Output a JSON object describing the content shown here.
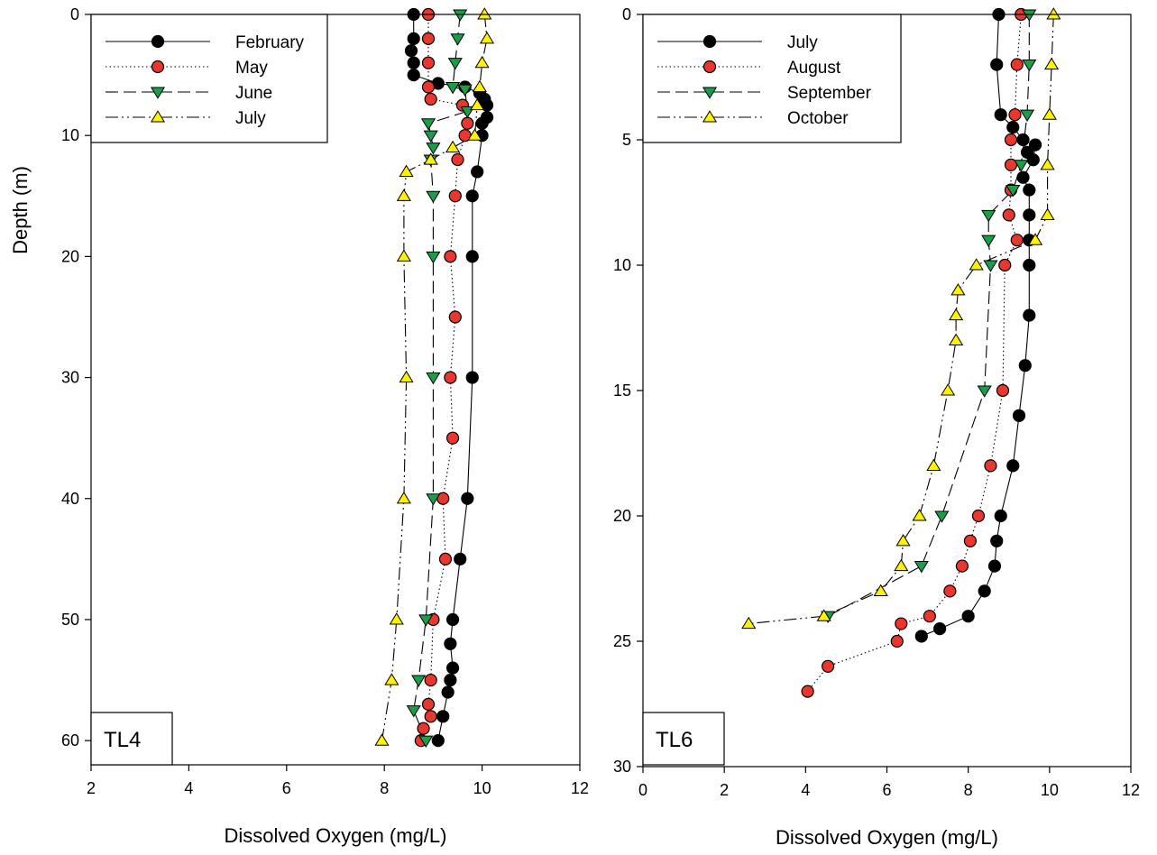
{
  "chart_data": [
    {
      "type": "scatter",
      "panel_label": "TL4",
      "xlabel": "Dissolved Oxygen (mg/L)",
      "ylabel": "Depth (m)",
      "xlim": [
        2,
        12
      ],
      "ylim": [
        0,
        62
      ],
      "y_inverted": true,
      "xticks": [
        2,
        4,
        6,
        8,
        10,
        12
      ],
      "yticks": [
        0,
        10,
        20,
        30,
        40,
        50,
        60
      ],
      "grid": false,
      "legend_position": "top-left",
      "series": [
        {
          "name": "February",
          "marker": "circle",
          "color": "#000000",
          "line": "solid",
          "x": [
            8.6,
            8.6,
            8.55,
            8.6,
            8.6,
            9.1,
            9.65,
            9.95,
            10.05,
            10.1,
            10.1,
            10.0,
            10.0,
            9.9,
            9.8,
            9.8,
            9.8,
            9.7,
            9.55,
            9.4,
            9.35,
            9.4,
            9.35,
            9.3,
            9.2,
            9.1
          ],
          "y": [
            0,
            2,
            3,
            4,
            5,
            5.7,
            6,
            6.5,
            7,
            7.5,
            8.5,
            9,
            10,
            13,
            15,
            20,
            30,
            40,
            45,
            50,
            52,
            54,
            55,
            56,
            58,
            60
          ]
        },
        {
          "name": "May",
          "marker": "circle",
          "color": "#e8372e",
          "line": "dotted",
          "x": [
            8.9,
            8.9,
            8.9,
            8.9,
            8.95,
            9.6,
            9.7,
            9.65,
            9.5,
            9.45,
            9.35,
            9.45,
            9.35,
            9.4,
            9.2,
            9.25,
            9.0,
            8.95,
            8.9,
            8.95,
            8.8,
            8.75
          ],
          "y": [
            0,
            2,
            4,
            6,
            7,
            7.5,
            9,
            10,
            12,
            15,
            20,
            25,
            30,
            35,
            40,
            45,
            50,
            55,
            57,
            58,
            59,
            60
          ]
        },
        {
          "name": "June",
          "marker": "triangle-down",
          "color": "#1a9e4a",
          "line": "dashed",
          "x": [
            9.55,
            9.5,
            9.45,
            9.4,
            9.65,
            9.7,
            8.9,
            8.95,
            9.0,
            8.95,
            9.0,
            9.0,
            9.0,
            9.0,
            8.85,
            8.7,
            8.6,
            8.85
          ],
          "y": [
            0,
            2,
            4,
            6,
            6.2,
            8,
            9,
            10,
            11,
            12,
            15,
            20,
            30,
            40,
            50,
            55,
            57.5,
            60
          ]
        },
        {
          "name": "July",
          "marker": "triangle-up",
          "color": "#fff200",
          "line": "dashdotdot",
          "x": [
            10.05,
            10.1,
            10.0,
            9.95,
            9.9,
            9.85,
            9.4,
            8.95,
            8.45,
            8.4,
            8.4,
            8.45,
            8.4,
            8.25,
            8.15,
            7.95
          ],
          "y": [
            0,
            2,
            4,
            6,
            7.5,
            10,
            11,
            12,
            13,
            15,
            20,
            30,
            40,
            50,
            55,
            60
          ]
        }
      ]
    },
    {
      "type": "scatter",
      "panel_label": "TL6",
      "xlabel": "Dissolved Oxygen (mg/L)",
      "ylabel": "",
      "xlim": [
        0,
        12
      ],
      "ylim": [
        0,
        30
      ],
      "y_inverted": true,
      "xticks": [
        0,
        2,
        4,
        6,
        8,
        10,
        12
      ],
      "yticks": [
        0,
        5,
        10,
        15,
        20,
        25,
        30
      ],
      "grid": false,
      "legend_position": "top-left",
      "series": [
        {
          "name": "July",
          "marker": "circle",
          "color": "#000000",
          "line": "solid",
          "x": [
            8.75,
            8.7,
            8.8,
            9.1,
            9.35,
            9.45,
            9.65,
            9.6,
            9.35,
            9.5,
            9.5,
            9.5,
            9.5,
            9.5,
            9.4,
            9.25,
            9.1,
            8.8,
            8.7,
            8.65,
            8.4,
            8.0,
            7.3,
            6.85
          ],
          "y": [
            0,
            2,
            4,
            4.5,
            5,
            5.5,
            5.2,
            5.8,
            6.5,
            7,
            8,
            9,
            10,
            12,
            14,
            16,
            18,
            20,
            21,
            22,
            23,
            24,
            24.5,
            24.8
          ]
        },
        {
          "name": "August",
          "marker": "circle",
          "color": "#e8372e",
          "line": "dotted",
          "x": [
            9.3,
            9.2,
            9.15,
            9.05,
            9.05,
            9.05,
            9.0,
            9.2,
            8.9,
            8.85,
            8.55,
            8.25,
            8.05,
            7.85,
            7.55,
            7.05,
            6.35,
            6.25,
            4.55,
            4.05
          ],
          "y": [
            0,
            2,
            4,
            5,
            6,
            7,
            8,
            9,
            10,
            15,
            18,
            20,
            21,
            22,
            23,
            24,
            24.3,
            25,
            26,
            27
          ]
        },
        {
          "name": "September",
          "marker": "triangle-down",
          "color": "#1a9e4a",
          "line": "dashed",
          "x": [
            9.5,
            9.5,
            9.45,
            9.3,
            9.1,
            8.5,
            8.5,
            8.55,
            8.4,
            7.35,
            6.85,
            4.55
          ],
          "y": [
            0,
            2,
            4,
            6,
            7,
            8,
            9,
            10,
            15,
            20,
            22,
            24
          ]
        },
        {
          "name": "October",
          "marker": "triangle-up",
          "color": "#fff200",
          "line": "dashdotdot",
          "x": [
            10.1,
            10.05,
            10.0,
            9.95,
            9.95,
            9.65,
            8.2,
            7.75,
            7.7,
            7.7,
            7.5,
            7.15,
            6.8,
            6.4,
            6.35,
            5.85,
            4.45,
            2.6
          ],
          "y": [
            0,
            2,
            4,
            6,
            8,
            9,
            10,
            11,
            12,
            13,
            15,
            18,
            20,
            21,
            22,
            23,
            24,
            24.3
          ]
        }
      ]
    }
  ]
}
